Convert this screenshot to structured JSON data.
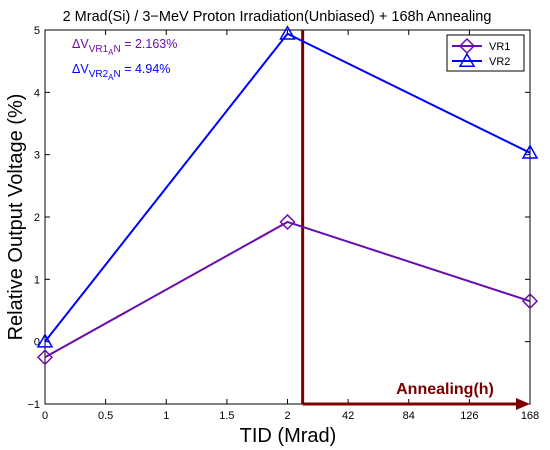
{
  "chart_data": {
    "type": "line",
    "title": "2 Mrad(Si) / 3−MeV Proton Irradiation(Unbiased) + 168h Annealing",
    "xlabel": "TID (Mrad)",
    "ylabel": "Relative Output Voltage (%)",
    "x_tick_labels": [
      "0",
      "0.5",
      "1",
      "1.5",
      "2",
      "42",
      "84",
      "126",
      "168"
    ],
    "y_ticks": [
      -1,
      0,
      1,
      2,
      3,
      4,
      5
    ],
    "ylim": [
      -1,
      5
    ],
    "grid": false,
    "legend_position": "top-right",
    "categories": [
      "0",
      "2",
      "168"
    ],
    "x_positions": [
      0,
      4,
      8
    ],
    "series": [
      {
        "name": "VR1",
        "marker": "diamond",
        "color": "#6a0dad",
        "values": [
          -0.25,
          1.92,
          0.65
        ]
      },
      {
        "name": "VR2",
        "marker": "triangle",
        "color": "#0000ff",
        "values": [
          0.0,
          4.94,
          3.03
        ]
      }
    ],
    "annotations": [
      {
        "delta": "ΔV",
        "sub_main": "VR1",
        "sub_sub": "A",
        "sub_end": "N",
        "value": " = 2.163%",
        "color": "#6a0dad"
      },
      {
        "delta": "ΔV",
        "sub_main": "VR2",
        "sub_sub": "A",
        "sub_end": "N",
        "value": " = 4.94%",
        "color": "#0000ff"
      }
    ],
    "annealing": {
      "label": "Annealing(h)",
      "color": "#7a0000",
      "x_start": 4.25,
      "x_end": 8,
      "y_bottom": -1,
      "y_top": 5
    }
  }
}
